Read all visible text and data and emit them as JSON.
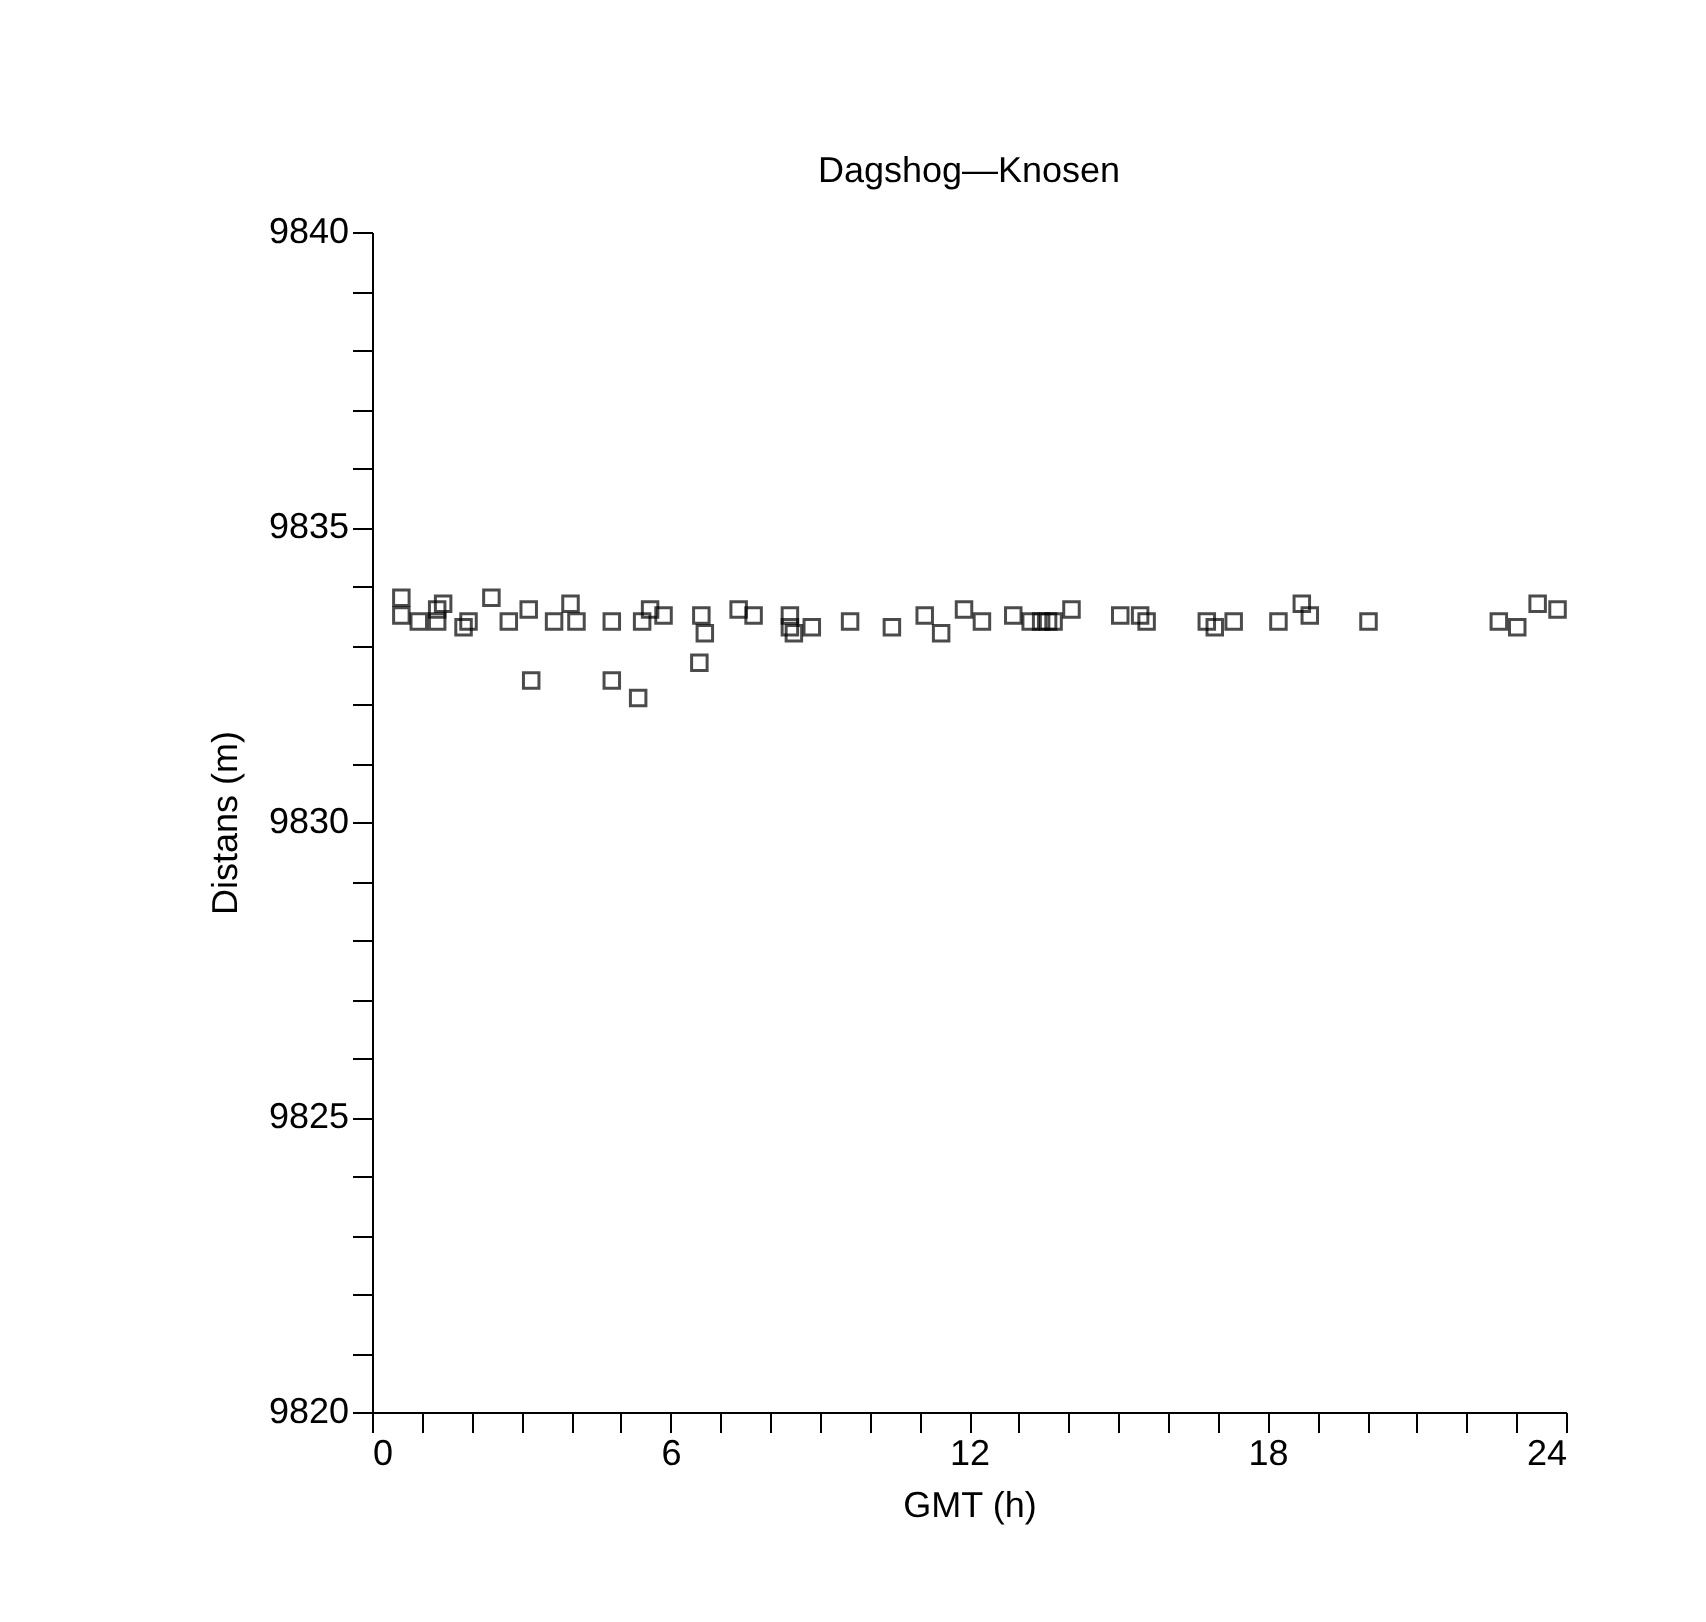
{
  "chart_data": {
    "type": "scatter",
    "title": "Dagshog—Knosen",
    "xlabel": "GMT (h)",
    "ylabel": "Distans (m)",
    "marker": "square",
    "grid": false,
    "legend": false,
    "xlim": [
      0,
      24
    ],
    "ylim": [
      9820,
      9840
    ],
    "xticks": [
      0,
      {
        "value": 1,
        "label": null
      },
      {
        "value": 2,
        "label": null
      },
      {
        "value": 3,
        "label": null
      },
      {
        "value": 4,
        "label": null
      },
      {
        "value": 5,
        "label": null
      },
      6,
      {
        "value": 7,
        "label": null
      },
      {
        "value": 8,
        "label": null
      },
      {
        "value": 9,
        "label": null
      },
      {
        "value": 10,
        "label": null
      },
      {
        "value": 11,
        "label": null
      },
      12,
      {
        "value": 13,
        "label": null
      },
      {
        "value": 14,
        "label": null
      },
      {
        "value": 15,
        "label": null
      },
      {
        "value": 16,
        "label": null
      },
      {
        "value": 17,
        "label": null
      },
      18,
      {
        "value": 19,
        "label": null
      },
      {
        "value": 20,
        "label": null
      },
      {
        "value": 21,
        "label": null
      },
      {
        "value": 22,
        "label": null
      },
      {
        "value": 23,
        "label": null
      },
      24
    ],
    "yticks": [
      9820,
      {
        "value": 9821,
        "label": null
      },
      {
        "value": 9822,
        "label": null
      },
      {
        "value": 9823,
        "label": null
      },
      {
        "value": 9824,
        "label": null
      },
      9825,
      {
        "value": 9826,
        "label": null
      },
      {
        "value": 9827,
        "label": null
      },
      {
        "value": 9828,
        "label": null
      },
      {
        "value": 9829,
        "label": null
      },
      9830,
      {
        "value": 9831,
        "label": null
      },
      {
        "value": 9832,
        "label": null
      },
      {
        "value": 9833,
        "label": null
      },
      {
        "value": 9834,
        "label": null
      },
      9835,
      {
        "value": 9836,
        "label": null
      },
      {
        "value": 9837,
        "label": null
      },
      {
        "value": 9838,
        "label": null
      },
      {
        "value": 9839,
        "label": null
      },
      9840
    ],
    "series": [
      {
        "color": "#000000",
        "x": [
          0.59,
          0.59,
          0.94,
          1.31,
          1.31,
          1.43,
          1.84,
          1.94,
          2.4,
          2.75,
          3.15,
          3.2,
          3.66,
          3.99,
          4.11,
          4.82,
          4.82,
          5.35,
          5.43,
          5.59,
          5.86,
          6.58,
          6.62,
          6.69,
          7.37,
          7.67,
          8.4,
          8.4,
          8.48,
          8.84,
          9.61,
          10.45,
          11.11,
          11.44,
          11.9,
          12.26,
          12.89,
          13.24,
          13.45,
          13.59,
          13.7,
          14.06,
          15.04,
          15.44,
          15.57,
          16.78,
          16.94,
          17.32,
          18.22,
          18.69,
          18.85,
          20.03,
          22.65,
          23.02,
          23.43,
          23.83
        ],
        "values": [
          9833.8,
          9833.5,
          9833.4,
          9833.4,
          9833.6,
          9833.7,
          9833.3,
          9833.4,
          9833.8,
          9833.4,
          9833.6,
          9832.4,
          9833.4,
          9833.7,
          9833.4,
          9833.4,
          9832.4,
          9832.1,
          9833.4,
          9833.6,
          9833.5,
          9832.7,
          9833.5,
          9833.2,
          9833.6,
          9833.5,
          9833.5,
          9833.3,
          9833.2,
          9833.3,
          9833.4,
          9833.3,
          9833.5,
          9833.2,
          9833.6,
          9833.4,
          9833.5,
          9833.4,
          9833.4,
          9833.4,
          9833.4,
          9833.6,
          9833.5,
          9833.5,
          9833.4,
          9833.4,
          9833.3,
          9833.4,
          9833.4,
          9833.7,
          9833.5,
          9833.4,
          9833.4,
          9833.3,
          9833.7,
          9833.6
        ]
      }
    ]
  }
}
